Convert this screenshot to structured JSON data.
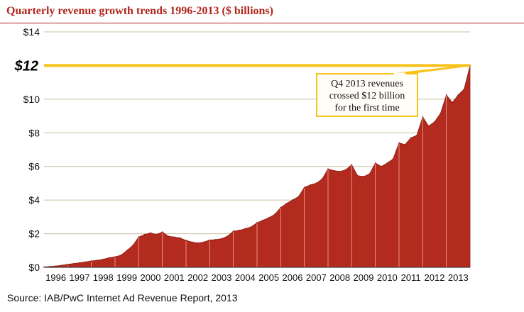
{
  "header": {
    "title": "Quarterly revenue growth trends 1996-2013 ($ billions)"
  },
  "footer": {
    "source": "Source: IAB/PwC Internet Ad Revenue Report, 2013"
  },
  "colors": {
    "fill": "#b32a1e",
    "stroke": "#f6a89c",
    "highlight": "#f7c31a",
    "grid": "#c8bf9f",
    "title": "#b1261c"
  },
  "chart_data": {
    "type": "area",
    "title": "Quarterly revenue growth trends 1996-2013 ($ billions)",
    "xlabel": "",
    "ylabel": "",
    "ylim": [
      0,
      14
    ],
    "xlim": [
      1996,
      2014
    ],
    "grid": true,
    "x_ticks": [
      "1996",
      "1997",
      "1998",
      "1999",
      "2000",
      "2001",
      "2002",
      "2003",
      "2004",
      "2005",
      "2006",
      "2007",
      "2008",
      "2009",
      "2010",
      "2011",
      "2012",
      "2013"
    ],
    "y_ticks": [
      {
        "value": 0,
        "label": "$0"
      },
      {
        "value": 2,
        "label": "$2"
      },
      {
        "value": 4,
        "label": "$4"
      },
      {
        "value": 6,
        "label": "$6"
      },
      {
        "value": 8,
        "label": "$8"
      },
      {
        "value": 10,
        "label": "$10"
      },
      {
        "value": 14,
        "label": "$14"
      }
    ],
    "highlight_line": {
      "value": 12,
      "label": "$12"
    },
    "annotation": {
      "lines": [
        "Q4 2013 revenues",
        "crossed $12 billion",
        "for the first time"
      ],
      "target_x": 2014,
      "target_y": 12
    },
    "series": [
      {
        "x": [
          1996.0,
          1996.25,
          1996.5,
          1996.75,
          1997.0,
          1997.25,
          1997.5,
          1997.75,
          1998.0,
          1998.25,
          1998.5,
          1998.75,
          1999.0,
          1999.25,
          1999.5,
          1999.75,
          2000.0,
          2000.25,
          2000.5,
          2000.75,
          2001.0,
          2001.25,
          2001.5,
          2001.75,
          2002.0,
          2002.25,
          2002.5,
          2002.75,
          2003.0,
          2003.25,
          2003.5,
          2003.75,
          2004.0,
          2004.25,
          2004.5,
          2004.75,
          2005.0,
          2005.25,
          2005.5,
          2005.75,
          2006.0,
          2006.25,
          2006.5,
          2006.75,
          2007.0,
          2007.25,
          2007.5,
          2007.75,
          2008.0,
          2008.25,
          2008.5,
          2008.75,
          2009.0,
          2009.25,
          2009.5,
          2009.75,
          2010.0,
          2010.25,
          2010.5,
          2010.75,
          2011.0,
          2011.25,
          2011.5,
          2011.75,
          2012.0,
          2012.25,
          2012.5,
          2012.75,
          2013.0,
          2013.25,
          2013.5,
          2013.75,
          2014.0
        ],
        "values": [
          0.02,
          0.05,
          0.08,
          0.12,
          0.18,
          0.22,
          0.27,
          0.32,
          0.38,
          0.42,
          0.48,
          0.57,
          0.62,
          0.72,
          1.0,
          1.3,
          1.8,
          1.95,
          2.05,
          1.95,
          2.1,
          1.85,
          1.8,
          1.75,
          1.6,
          1.5,
          1.45,
          1.5,
          1.62,
          1.65,
          1.7,
          1.85,
          2.15,
          2.2,
          2.3,
          2.4,
          2.65,
          2.8,
          2.95,
          3.15,
          3.55,
          3.8,
          4.0,
          4.2,
          4.75,
          4.9,
          5.0,
          5.25,
          5.85,
          5.75,
          5.7,
          5.8,
          6.1,
          5.45,
          5.4,
          5.55,
          6.2,
          6.0,
          6.2,
          6.45,
          7.4,
          7.3,
          7.7,
          7.85,
          8.95,
          8.4,
          8.65,
          9.15,
          10.25,
          9.8,
          10.25,
          10.6,
          12.0
        ]
      }
    ]
  }
}
